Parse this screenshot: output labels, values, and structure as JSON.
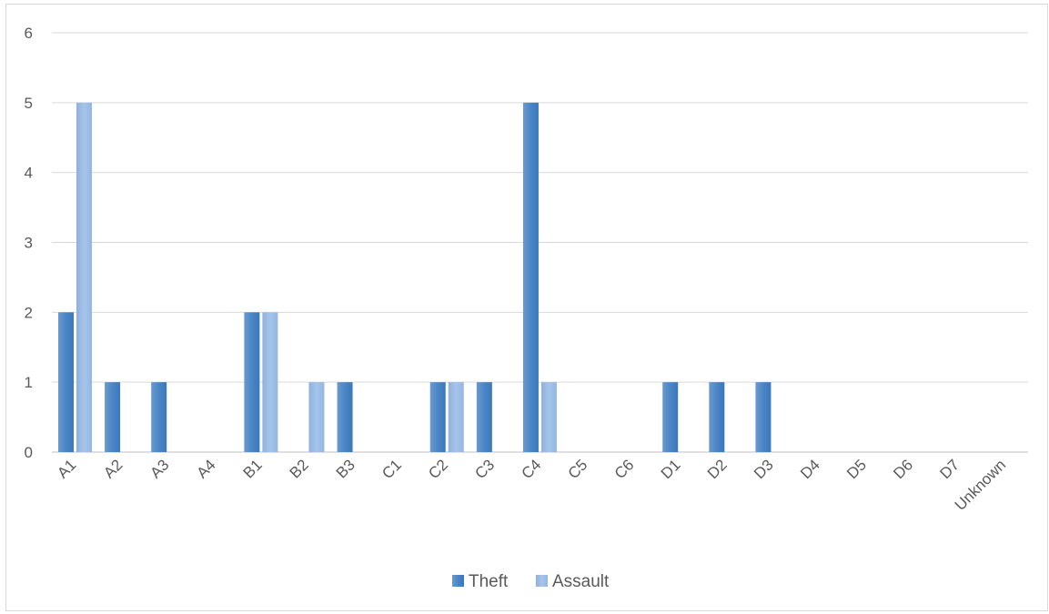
{
  "chart_data": {
    "type": "bar",
    "title": "",
    "xlabel": "",
    "ylabel": "",
    "categories": [
      "A1",
      "A2",
      "A3",
      "A4",
      "B1",
      "B2",
      "B3",
      "C1",
      "C2",
      "C3",
      "C4",
      "C5",
      "C6",
      "D1",
      "D2",
      "D3",
      "D4",
      "D5",
      "D6",
      "D7",
      "Unknown"
    ],
    "series": [
      {
        "name": "Theft",
        "color": "#4f86c3",
        "values": [
          2,
          1,
          1,
          0,
          2,
          0,
          1,
          0,
          1,
          1,
          5,
          0,
          0,
          1,
          1,
          1,
          0,
          0,
          0,
          0,
          0
        ]
      },
      {
        "name": "Assault",
        "color": "#9dbde6",
        "values": [
          5,
          0,
          0,
          0,
          2,
          1,
          0,
          0,
          1,
          0,
          1,
          0,
          0,
          0,
          0,
          0,
          0,
          0,
          0,
          0,
          0
        ]
      }
    ],
    "ylim": [
      0,
      6
    ],
    "yticks": [
      0,
      1,
      2,
      3,
      4,
      5,
      6
    ],
    "grid": true,
    "legend": "bottom-center"
  }
}
